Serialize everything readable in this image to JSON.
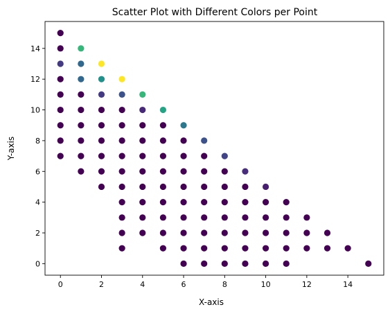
{
  "chart_data": {
    "type": "scatter",
    "title": "Scatter Plot with Different Colors per Point",
    "xlabel": "X-axis",
    "ylabel": "Y-axis",
    "xlim": [
      -0.75,
      15.75
    ],
    "ylim": [
      -0.75,
      15.75
    ],
    "xticks": [
      0,
      2,
      4,
      6,
      8,
      10,
      12,
      14
    ],
    "yticks": [
      0,
      2,
      4,
      6,
      8,
      10,
      12,
      14
    ],
    "grid": false,
    "legend": "none",
    "colormap": "viridis",
    "default_color": "#440154",
    "highlight_points": [
      {
        "x": 0,
        "y": 13,
        "color": "#443a83"
      },
      {
        "x": 1,
        "y": 14,
        "color": "#35b779"
      },
      {
        "x": 1,
        "y": 13,
        "color": "#31688e"
      },
      {
        "x": 1,
        "y": 12,
        "color": "#31688e"
      },
      {
        "x": 2,
        "y": 13,
        "color": "#fde725"
      },
      {
        "x": 2,
        "y": 12,
        "color": "#21918c"
      },
      {
        "x": 2,
        "y": 11,
        "color": "#443a83"
      },
      {
        "x": 3,
        "y": 12,
        "color": "#fde725"
      },
      {
        "x": 3,
        "y": 11,
        "color": "#3b528b"
      },
      {
        "x": 4,
        "y": 11,
        "color": "#35b779"
      },
      {
        "x": 4,
        "y": 10,
        "color": "#482878"
      },
      {
        "x": 5,
        "y": 10,
        "color": "#21a585"
      },
      {
        "x": 6,
        "y": 9,
        "color": "#2a788e"
      },
      {
        "x": 7,
        "y": 8,
        "color": "#3b528b"
      },
      {
        "x": 8,
        "y": 7,
        "color": "#414487"
      },
      {
        "x": 9,
        "y": 6,
        "color": "#472d7b"
      },
      {
        "x": 10,
        "y": 5,
        "color": "#481f70"
      }
    ],
    "points": [
      [
        0,
        15
      ],
      [
        0,
        14
      ],
      [
        0,
        13
      ],
      [
        0,
        12
      ],
      [
        0,
        11
      ],
      [
        0,
        10
      ],
      [
        0,
        9
      ],
      [
        0,
        8
      ],
      [
        0,
        7
      ],
      [
        1,
        14
      ],
      [
        1,
        13
      ],
      [
        1,
        12
      ],
      [
        1,
        11
      ],
      [
        1,
        10
      ],
      [
        1,
        9
      ],
      [
        1,
        8
      ],
      [
        1,
        7
      ],
      [
        1,
        6
      ],
      [
        2,
        13
      ],
      [
        2,
        12
      ],
      [
        2,
        11
      ],
      [
        2,
        10
      ],
      [
        2,
        9
      ],
      [
        2,
        8
      ],
      [
        2,
        7
      ],
      [
        2,
        6
      ],
      [
        2,
        5
      ],
      [
        3,
        12
      ],
      [
        3,
        11
      ],
      [
        3,
        10
      ],
      [
        3,
        9
      ],
      [
        3,
        8
      ],
      [
        3,
        7
      ],
      [
        3,
        6
      ],
      [
        3,
        5
      ],
      [
        3,
        4
      ],
      [
        3,
        3
      ],
      [
        3,
        2
      ],
      [
        3,
        1
      ],
      [
        4,
        11
      ],
      [
        4,
        10
      ],
      [
        4,
        9
      ],
      [
        4,
        8
      ],
      [
        4,
        7
      ],
      [
        4,
        6
      ],
      [
        4,
        5
      ],
      [
        4,
        4
      ],
      [
        4,
        3
      ],
      [
        4,
        2
      ],
      [
        5,
        10
      ],
      [
        5,
        9
      ],
      [
        5,
        8
      ],
      [
        5,
        7
      ],
      [
        5,
        6
      ],
      [
        5,
        5
      ],
      [
        5,
        4
      ],
      [
        5,
        3
      ],
      [
        5,
        2
      ],
      [
        5,
        1
      ],
      [
        6,
        9
      ],
      [
        6,
        8
      ],
      [
        6,
        7
      ],
      [
        6,
        6
      ],
      [
        6,
        5
      ],
      [
        6,
        4
      ],
      [
        6,
        3
      ],
      [
        6,
        2
      ],
      [
        6,
        1
      ],
      [
        6,
        0
      ],
      [
        7,
        8
      ],
      [
        7,
        7
      ],
      [
        7,
        6
      ],
      [
        7,
        5
      ],
      [
        7,
        4
      ],
      [
        7,
        3
      ],
      [
        7,
        2
      ],
      [
        7,
        1
      ],
      [
        7,
        0
      ],
      [
        8,
        7
      ],
      [
        8,
        6
      ],
      [
        8,
        5
      ],
      [
        8,
        4
      ],
      [
        8,
        3
      ],
      [
        8,
        2
      ],
      [
        8,
        1
      ],
      [
        8,
        0
      ],
      [
        9,
        6
      ],
      [
        9,
        5
      ],
      [
        9,
        4
      ],
      [
        9,
        3
      ],
      [
        9,
        2
      ],
      [
        9,
        1
      ],
      [
        9,
        0
      ],
      [
        10,
        5
      ],
      [
        10,
        4
      ],
      [
        10,
        3
      ],
      [
        10,
        2
      ],
      [
        10,
        1
      ],
      [
        10,
        0
      ],
      [
        11,
        4
      ],
      [
        11,
        3
      ],
      [
        11,
        2
      ],
      [
        11,
        1
      ],
      [
        11,
        0
      ],
      [
        12,
        3
      ],
      [
        12,
        2
      ],
      [
        12,
        1
      ],
      [
        13,
        2
      ],
      [
        13,
        1
      ],
      [
        14,
        1
      ],
      [
        15,
        0
      ]
    ]
  }
}
